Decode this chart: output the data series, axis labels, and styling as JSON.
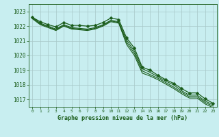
{
  "title": "Graphe pression niveau de la mer (hPa)",
  "background_color": "#c8eef0",
  "grid_color": "#a8c8c8",
  "line_color": "#1a5c1a",
  "xlim": [
    -0.5,
    23.5
  ],
  "ylim": [
    1016.5,
    1023.5
  ],
  "yticks": [
    1017,
    1018,
    1019,
    1020,
    1021,
    1022,
    1023
  ],
  "xticks": [
    0,
    1,
    2,
    3,
    4,
    5,
    6,
    7,
    8,
    9,
    10,
    11,
    12,
    13,
    14,
    15,
    16,
    17,
    18,
    19,
    20,
    21,
    22,
    23
  ],
  "series": [
    {
      "x": [
        0,
        1,
        2,
        3,
        4,
        5,
        6,
        7,
        8,
        9,
        10,
        11,
        12,
        13,
        14,
        15,
        16,
        17,
        18,
        19,
        20,
        21,
        22,
        23
      ],
      "y": [
        1022.6,
        1022.3,
        1022.1,
        1021.95,
        1022.25,
        1022.05,
        1022.05,
        1022.0,
        1022.05,
        1022.25,
        1022.55,
        1022.45,
        1021.2,
        1020.5,
        1019.2,
        1019.0,
        1018.65,
        1018.35,
        1018.1,
        1017.75,
        1017.45,
        1017.45,
        1017.05,
        1016.75
      ],
      "marker": "D",
      "markersize": 2.5,
      "linewidth": 0.9
    },
    {
      "x": [
        0,
        1,
        2,
        3,
        4,
        5,
        6,
        7,
        8,
        9,
        10,
        11,
        12,
        13,
        14,
        15,
        16,
        17,
        18,
        19,
        20,
        21,
        22,
        23
      ],
      "y": [
        1022.6,
        1022.2,
        1022.0,
        1021.8,
        1022.1,
        1021.9,
        1021.85,
        1021.8,
        1021.9,
        1022.1,
        1022.4,
        1022.3,
        1021.05,
        1020.3,
        1019.1,
        1018.85,
        1018.55,
        1018.25,
        1018.0,
        1017.6,
        1017.3,
        1017.3,
        1016.9,
        1016.65
      ],
      "marker": null,
      "markersize": 0,
      "linewidth": 0.8
    },
    {
      "x": [
        0,
        1,
        2,
        3,
        4,
        5,
        6,
        7,
        8,
        9,
        10,
        11,
        12,
        13,
        14,
        15,
        16,
        17,
        18,
        19,
        20,
        21,
        22,
        23
      ],
      "y": [
        1022.55,
        1022.15,
        1021.95,
        1021.75,
        1022.05,
        1021.85,
        1021.8,
        1021.75,
        1021.85,
        1022.05,
        1022.35,
        1022.25,
        1020.9,
        1020.15,
        1018.95,
        1018.7,
        1018.45,
        1018.15,
        1017.85,
        1017.5,
        1017.2,
        1017.2,
        1016.8,
        1016.55
      ],
      "marker": null,
      "markersize": 0,
      "linewidth": 0.8
    },
    {
      "x": [
        0,
        1,
        2,
        3,
        4,
        5,
        6,
        7,
        8,
        9,
        10,
        11,
        12,
        13,
        14,
        15,
        16,
        17,
        18,
        19,
        20,
        21,
        22,
        23
      ],
      "y": [
        1022.5,
        1022.1,
        1021.9,
        1021.7,
        1022.0,
        1021.8,
        1021.75,
        1021.7,
        1021.8,
        1022.0,
        1022.3,
        1022.2,
        1020.75,
        1020.0,
        1018.8,
        1018.6,
        1018.35,
        1018.05,
        1017.75,
        1017.4,
        1017.1,
        1017.1,
        1016.7,
        1016.45
      ],
      "marker": null,
      "markersize": 0,
      "linewidth": 0.8
    }
  ]
}
